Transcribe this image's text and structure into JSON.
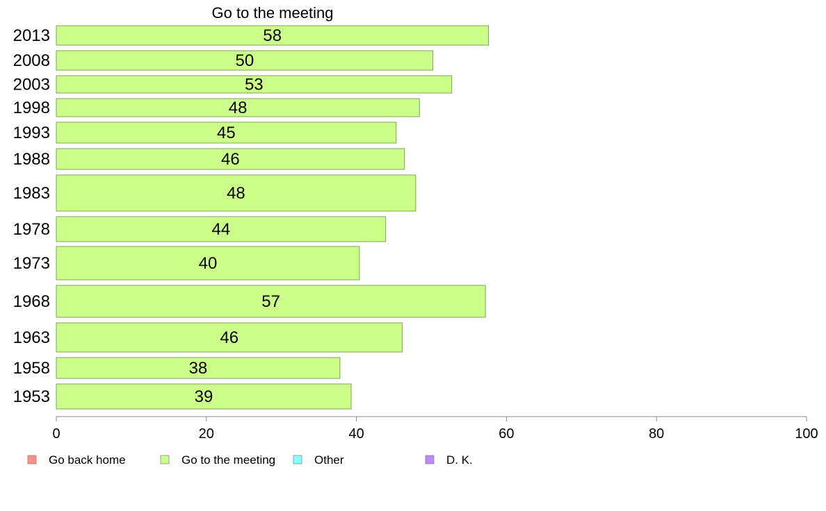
{
  "chart_data": {
    "type": "bar",
    "orientation": "horizontal",
    "title": "Go to the meeting",
    "xlabel": "",
    "ylabel": "",
    "xlim": [
      0,
      100
    ],
    "xticks": [
      "0",
      "20",
      "40",
      "60",
      "80",
      "100"
    ],
    "grid": false,
    "categories": [
      "2013",
      "2008",
      "2003",
      "1998",
      "1993",
      "1988",
      "1983",
      "1978",
      "1973",
      "1968",
      "1963",
      "1958",
      "1953"
    ],
    "series": [
      {
        "name": "Go to the meeting",
        "values": [
          57.6,
          50.2,
          52.7,
          48.4,
          45.3,
          46.4,
          47.9,
          43.9,
          40.4,
          57.2,
          46.1,
          37.8,
          39.3
        ],
        "labels": [
          "58",
          "50",
          "53",
          "48",
          "45",
          "46",
          "48",
          "44",
          "40",
          "57",
          "46",
          "38",
          "39"
        ]
      }
    ],
    "legend": {
      "placement": "bottom-left",
      "items": [
        {
          "label": "Go back home",
          "color": "#ff8f87"
        },
        {
          "label": "Go to the meeting",
          "color": "#ccff88"
        },
        {
          "label": "Other",
          "color": "#88ffff"
        },
        {
          "label": "D. K.",
          "color": "#bb88ff"
        }
      ]
    },
    "colors": {
      "bar": "#ccff88",
      "bar_stroke": "#7fa05a",
      "axis": "#888888"
    }
  }
}
